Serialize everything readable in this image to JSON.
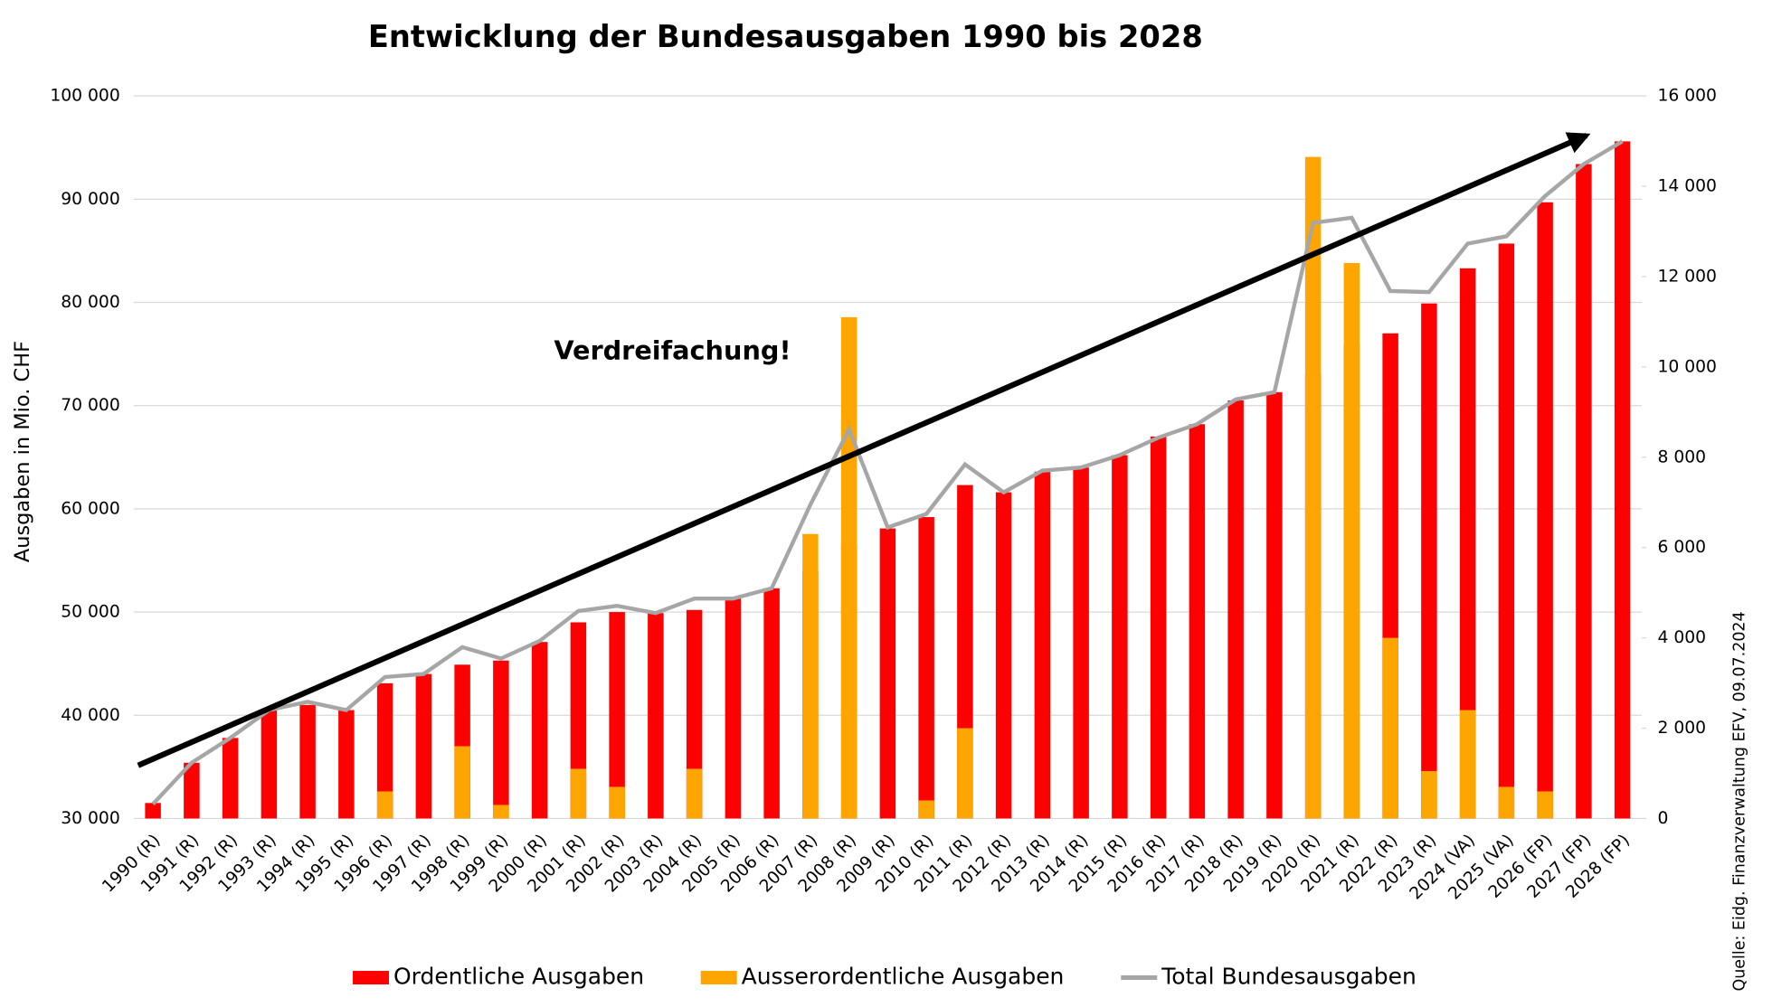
{
  "chart_data": {
    "type": "bar",
    "title": "Entwicklung der Bundesausgaben 1990 bis 2028",
    "y_label": "Ausgaben in Mio. CHF",
    "annotation": "Verdreifachung!",
    "source": "Quelle: Eidg. Finanzverwaltung EFV, 09.07.2024",
    "categories": [
      "1990 (R)",
      "1991 (R)",
      "1992 (R)",
      "1993 (R)",
      "1994 (R)",
      "1995 (R)",
      "1996 (R)",
      "1997 (R)",
      "1998 (R)",
      "1999 (R)",
      "2000 (R)",
      "2001 (R)",
      "2002 (R)",
      "2003 (R)",
      "2004 (R)",
      "2005 (R)",
      "2006 (R)",
      "2007 (R)",
      "2008 (R)",
      "2009 (R)",
      "2010 (R)",
      "2011 (R)",
      "2012 (R)",
      "2013 (R)",
      "2014 (R)",
      "2015 (R)",
      "2016 (R)",
      "2017 (R)",
      "2018 (R)",
      "2019 (R)",
      "2020 (R)",
      "2021 (R)",
      "2022 (R)",
      "2023 (R)",
      "2024 (VA)",
      "2025 (VA)",
      "2026 (FP)",
      "2027 (FP)",
      "2028 (FP)"
    ],
    "series": [
      {
        "name": "Ordentliche Ausgaben",
        "color": "#ff0000",
        "kind": "bar",
        "axis": "y",
        "values": [
          31500,
          35400,
          37800,
          40500,
          41000,
          40500,
          43100,
          44000,
          44900,
          45300,
          47100,
          49000,
          50000,
          49900,
          50200,
          51300,
          52300,
          54000,
          56600,
          58100,
          59200,
          62300,
          61600,
          63600,
          64000,
          65200,
          67000,
          68200,
          70500,
          71300,
          73000,
          75900,
          77000,
          79900,
          83300,
          85700,
          89700,
          93400,
          95600
        ]
      },
      {
        "name": "Ausserordentliche Ausgaben",
        "color": "#ffa500",
        "kind": "bar",
        "axis": "y2",
        "values": [
          null,
          null,
          null,
          null,
          null,
          null,
          600,
          null,
          1600,
          300,
          null,
          1100,
          700,
          null,
          1100,
          null,
          null,
          6300,
          11100,
          null,
          400,
          2000,
          null,
          null,
          null,
          null,
          null,
          null,
          null,
          null,
          14650,
          12300,
          4000,
          1050,
          2400,
          700,
          600,
          null,
          null
        ]
      },
      {
        "name": "Total Bundesausgaben",
        "color": "#a6a6a6",
        "kind": "line",
        "axis": "y",
        "values": [
          31400,
          35400,
          37800,
          40500,
          41300,
          40500,
          43700,
          44000,
          46600,
          45500,
          47200,
          50100,
          50600,
          49900,
          51300,
          51300,
          52300,
          60400,
          67700,
          58200,
          59500,
          64300,
          61600,
          63700,
          64000,
          65200,
          66900,
          68200,
          70600,
          71300,
          87700,
          88200,
          81100,
          81000,
          85700,
          86400,
          90300,
          93400,
          95600
        ]
      }
    ],
    "ylim": [
      30000,
      100000
    ],
    "yticks": [
      {
        "value": 30000,
        "label": "30 000"
      },
      {
        "value": 40000,
        "label": "40 000"
      },
      {
        "value": 50000,
        "label": "50 000"
      },
      {
        "value": 60000,
        "label": "60 000"
      },
      {
        "value": 70000,
        "label": "70 000"
      },
      {
        "value": 80000,
        "label": "80 000"
      },
      {
        "value": 90000,
        "label": "90 000"
      },
      {
        "value": 100000,
        "label": "100 000"
      }
    ],
    "y2lim": [
      0,
      16000
    ],
    "y2ticks": [
      0,
      {
        "value": 2000,
        "label": "2 000"
      },
      {
        "value": 4000,
        "label": "4 000"
      },
      {
        "value": 6000,
        "label": "6 000"
      },
      {
        "value": 8000,
        "label": "8 000"
      },
      {
        "value": 10000,
        "label": "10 000"
      },
      {
        "value": 12000,
        "label": "12 000"
      },
      {
        "value": 14000,
        "label": "14 000"
      },
      {
        "value": 16000,
        "label": "16 000"
      }
    ],
    "grid": true,
    "legend": "bottom"
  }
}
